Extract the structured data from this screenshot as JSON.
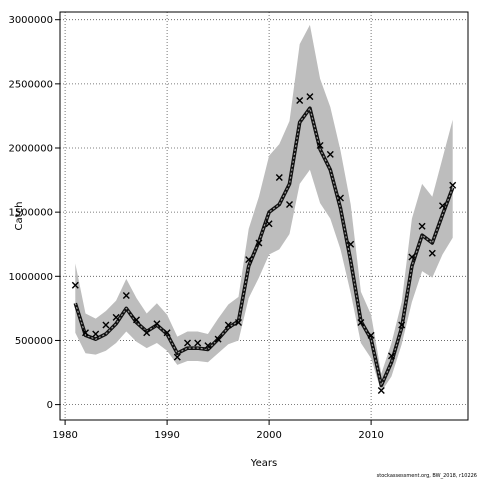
{
  "chart_data": {
    "type": "line",
    "xlabel": "Years",
    "ylabel": "Catch",
    "xlim": [
      1979.5,
      2019.5
    ],
    "ylim": [
      -120000,
      3060000
    ],
    "x_ticks": [
      1980,
      1990,
      2000,
      2010
    ],
    "y_ticks": [
      0,
      500000,
      1000000,
      1500000,
      2000000,
      2500000,
      3000000
    ],
    "y_tick_labels": [
      "0",
      "500000",
      "1000000",
      "1500000",
      "2000000",
      "2500000",
      "3000000"
    ],
    "grid": "dotted",
    "series": [
      {
        "kind": "band",
        "color": "#bdbdbd",
        "x": [
          1981,
          1982,
          1983,
          1984,
          1985,
          1986,
          1987,
          1988,
          1989,
          1990,
          1991,
          1992,
          1993,
          1994,
          1995,
          1996,
          1997,
          1998,
          1999,
          2000,
          2001,
          2002,
          2003,
          2004,
          2005,
          2006,
          2007,
          2008,
          2009,
          2010,
          2011,
          2012,
          2013,
          2014,
          2015,
          2016,
          2017,
          2018
        ],
        "lower": [
          560000,
          400000,
          390000,
          420000,
          480000,
          570000,
          490000,
          440000,
          480000,
          420000,
          310000,
          340000,
          340000,
          330000,
          400000,
          470000,
          500000,
          830000,
          990000,
          1170000,
          1210000,
          1330000,
          1720000,
          1830000,
          1570000,
          1450000,
          1210000,
          870000,
          480000,
          360000,
          100000,
          220000,
          470000,
          800000,
          1040000,
          990000,
          1170000,
          1300000
        ],
        "upper": [
          1100000,
          710000,
          670000,
          730000,
          810000,
          980000,
          830000,
          710000,
          790000,
          700000,
          530000,
          570000,
          570000,
          550000,
          670000,
          780000,
          840000,
          1370000,
          1620000,
          1940000,
          2030000,
          2210000,
          2810000,
          2960000,
          2540000,
          2320000,
          1980000,
          1560000,
          880000,
          700000,
          240000,
          480000,
          800000,
          1450000,
          1720000,
          1620000,
          1920000,
          2220000
        ]
      },
      {
        "kind": "line",
        "color": "#333333",
        "x": [
          1981,
          1982,
          1983,
          1984,
          1985,
          1986,
          1987,
          1988,
          1989,
          1990,
          1991,
          1992,
          1993,
          1994,
          1995,
          1996,
          1997,
          1998,
          1999,
          2000,
          2001,
          2002,
          2003,
          2004,
          2005,
          2006,
          2007,
          2008,
          2009,
          2010,
          2011,
          2012,
          2013,
          2014,
          2015,
          2016,
          2017,
          2018
        ],
        "y": [
          790000,
          540000,
          510000,
          550000,
          630000,
          750000,
          640000,
          570000,
          620000,
          550000,
          400000,
          440000,
          440000,
          430000,
          510000,
          600000,
          650000,
          1080000,
          1270000,
          1500000,
          1560000,
          1720000,
          2200000,
          2310000,
          1990000,
          1830000,
          1530000,
          1120000,
          650000,
          510000,
          150000,
          330000,
          600000,
          1080000,
          1320000,
          1260000,
          1480000,
          1690000
        ]
      },
      {
        "kind": "points",
        "marker": "x",
        "color": "#000000",
        "x": [
          1981,
          1982,
          1983,
          1984,
          1985,
          1986,
          1987,
          1988,
          1989,
          1990,
          1991,
          1992,
          1993,
          1994,
          1995,
          1996,
          1997,
          1998,
          1999,
          2000,
          2001,
          2002,
          2003,
          2004,
          2005,
          2006,
          2007,
          2008,
          2009,
          2010,
          2011,
          2012,
          2013,
          2014,
          2015,
          2016,
          2017,
          2018
        ],
        "y": [
          930000,
          560000,
          550000,
          620000,
          680000,
          850000,
          660000,
          560000,
          630000,
          560000,
          370000,
          480000,
          480000,
          460000,
          510000,
          620000,
          640000,
          1130000,
          1260000,
          1410000,
          1770000,
          1560000,
          2370000,
          2400000,
          2020000,
          1950000,
          1610000,
          1250000,
          640000,
          540000,
          110000,
          380000,
          620000,
          1150000,
          1390000,
          1180000,
          1550000,
          1710000
        ]
      }
    ]
  },
  "footer": "stockassessment.org, BW_2018, r10226"
}
